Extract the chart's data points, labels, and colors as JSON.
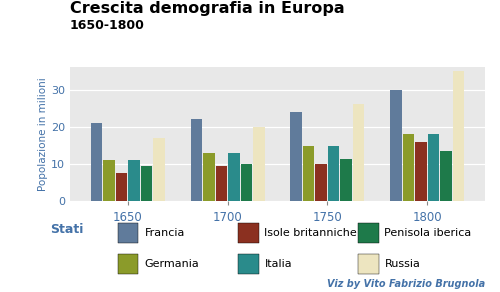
{
  "title": "Crescita demografia in Europa",
  "subtitle": "1650-1800",
  "ylabel": "Popolazione in milioni",
  "years": [
    1650,
    1700,
    1750,
    1800
  ],
  "countries": [
    "Francia",
    "Germania",
    "Isole britanniche",
    "Italia",
    "Penisola iberica",
    "Russia"
  ],
  "colors": {
    "Francia": "#607B9B",
    "Germania": "#8B9B2A",
    "Isole britanniche": "#8B3020",
    "Italia": "#2A8B8B",
    "Penisola iberica": "#1E7A4A",
    "Russia": "#EDE5C0"
  },
  "data": {
    "Francia": [
      21,
      22,
      24,
      30
    ],
    "Germania": [
      11,
      13,
      15,
      18
    ],
    "Isole britanniche": [
      7.5,
      9.5,
      10,
      16
    ],
    "Italia": [
      11,
      13,
      15,
      18
    ],
    "Penisola iberica": [
      9.5,
      10,
      11.5,
      13.5
    ],
    "Russia": [
      17,
      20,
      26,
      35
    ]
  },
  "ylim": [
    0,
    36
  ],
  "yticks": [
    0,
    10,
    20,
    30
  ],
  "bg_color": "#E8E8E8",
  "fig_bg": "#FFFFFF",
  "viz_credit": "Viz by Vito Fabrizio Brugnola",
  "legend_title": "Stati",
  "axis_color": "#4472A8",
  "credit_color": "#4472A8",
  "title_color": "#000000",
  "subtitle_color": "#000000"
}
